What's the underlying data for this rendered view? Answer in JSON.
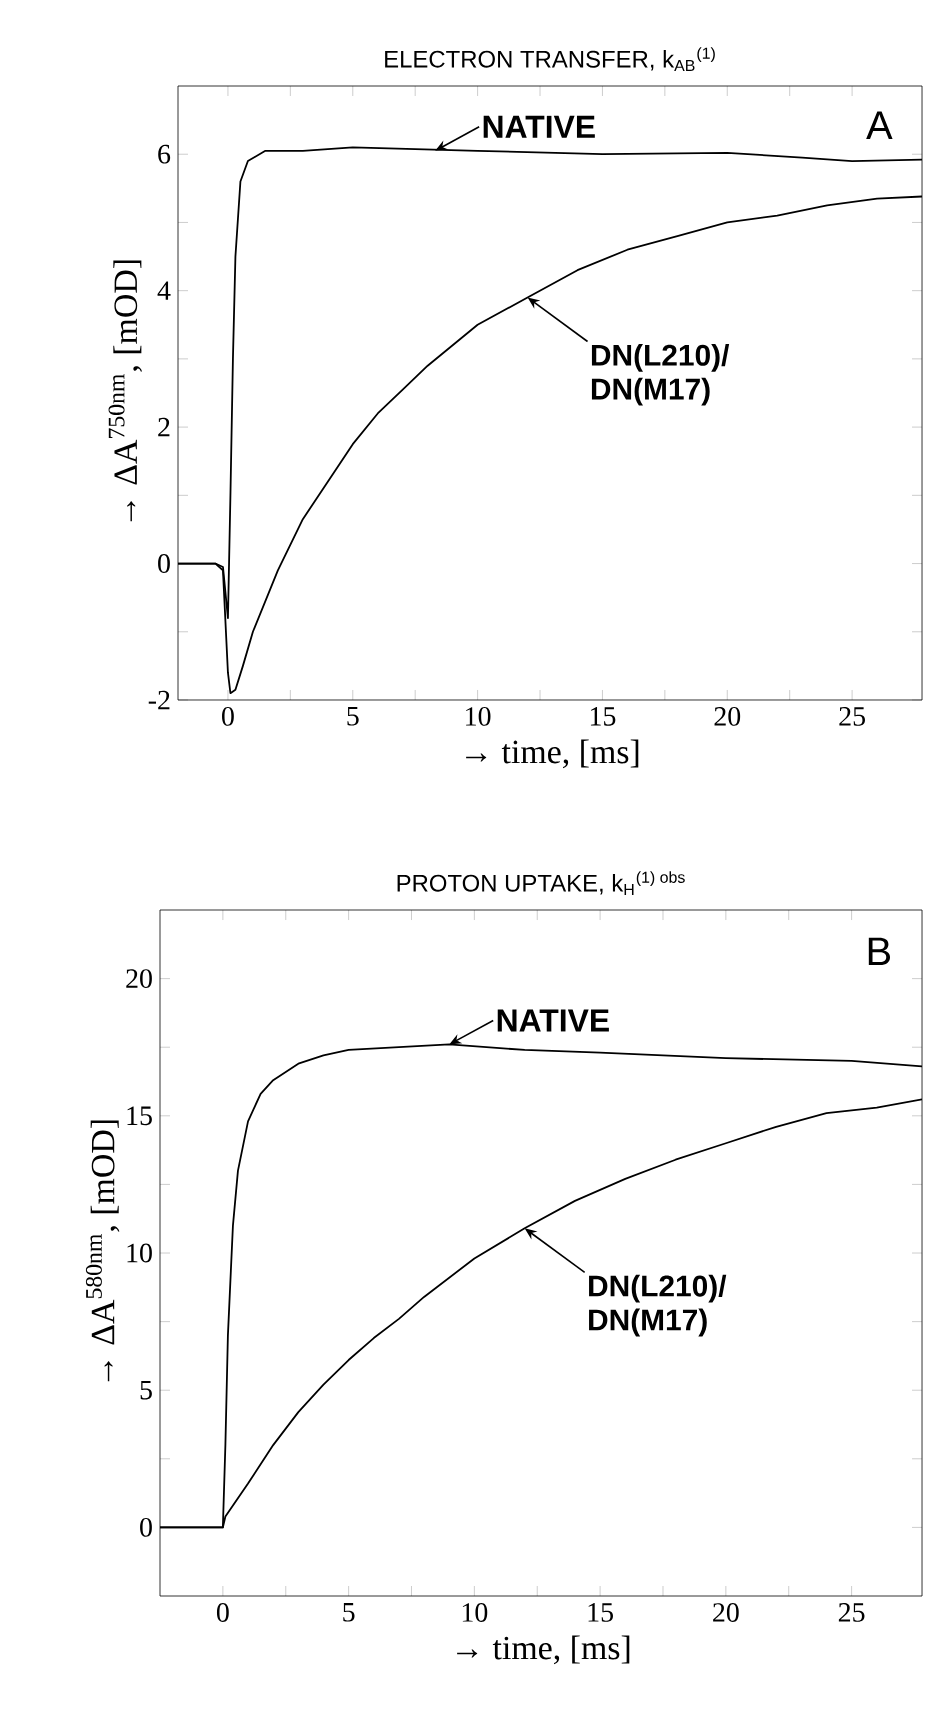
{
  "chart_data": [
    {
      "type": "line",
      "title": "ELECTRON TRANSFER, k$_{AB}$$^{(1)}$",
      "xlabel": "→ time, [ms]",
      "ylabel": "→ ΔA$^{750nm}$, [mOD]",
      "xlim": [
        -2,
        27.8
      ],
      "ylim": [
        -2,
        7
      ],
      "xticks": [
        0,
        {
          "value": 2.5,
          "label": null
        },
        5,
        {
          "value": 7.5,
          "label": null
        },
        10,
        {
          "value": 12.5,
          "label": null
        },
        15,
        {
          "value": 17.5,
          "label": null
        },
        20,
        {
          "value": 22.5,
          "label": null
        },
        25
      ],
      "yticks": [
        -2,
        {
          "value": -1,
          "label": null
        },
        0,
        {
          "value": 1,
          "label": null
        },
        2,
        {
          "value": 3,
          "label": null
        },
        4,
        {
          "value": 5,
          "label": null
        },
        6
      ],
      "series": [
        {
          "color": "#000000",
          "x": [
            -2,
            -0.5,
            -0.2,
            0,
            0.1,
            0.2,
            0.3,
            0.5,
            0.8,
            1.5,
            3,
            5,
            10,
            15,
            20,
            23,
            25,
            27.8
          ],
          "values": [
            0,
            0,
            -0.05,
            -0.8,
            1,
            3,
            4.5,
            5.6,
            5.9,
            6.05,
            6.05,
            6.1,
            6.05,
            6.0,
            6.02,
            5.95,
            5.9,
            5.92
          ]
        },
        {
          "color": "#000000",
          "x": [
            -2,
            -0.5,
            -0.2,
            0,
            0.1,
            0.3,
            0.6,
            1,
            2,
            3,
            4,
            5,
            6,
            7,
            8,
            10,
            12,
            14,
            16,
            18,
            20,
            22,
            24,
            26,
            27.8
          ],
          "values": [
            0,
            0,
            -0.1,
            -1.6,
            -1.9,
            -1.85,
            -1.5,
            -1.0,
            -0.1,
            0.65,
            1.2,
            1.75,
            2.2,
            2.55,
            2.9,
            3.5,
            3.9,
            4.3,
            4.6,
            4.8,
            5.0,
            5.1,
            5.25,
            5.35,
            5.38
          ]
        }
      ],
      "annotations": [
        {
          "text": "NATIVE",
          "x": 8.3,
          "y": 6.05
        },
        {
          "text": "DN(L210)/ DN(M17)",
          "x": 12,
          "y": 3.9
        },
        "A"
      ]
    },
    {
      "type": "line",
      "title": "PROTON  UPTAKE, k$_{H}$$^{(1) obs}$",
      "xlabel": "→ time, [ms]",
      "ylabel": "→ ΔA$^{580nm}$, [mOD]",
      "xlim": [
        -2.5,
        27.8
      ],
      "ylim": [
        -2.5,
        22.5
      ],
      "xticks": [
        0,
        {
          "value": 2.5,
          "label": null
        },
        5,
        {
          "value": 7.5,
          "label": null
        },
        10,
        {
          "value": 12.5,
          "label": null
        },
        15,
        {
          "value": 17.5,
          "label": null
        },
        20,
        {
          "value": 22.5,
          "label": null
        },
        25
      ],
      "yticks": [
        0,
        {
          "value": 2.5,
          "label": null
        },
        5,
        {
          "value": 7.5,
          "label": null
        },
        10,
        {
          "value": 12.5,
          "label": null
        },
        15,
        {
          "value": 17.5,
          "label": null
        },
        20
      ],
      "series": [
        {
          "color": "#000000",
          "x": [
            -2.5,
            0,
            0.1,
            0.2,
            0.4,
            0.6,
            1,
            1.5,
            2,
            3,
            4,
            5,
            7,
            9,
            12,
            15,
            20,
            25,
            27.8
          ],
          "values": [
            0,
            0,
            3,
            7,
            11,
            13,
            14.8,
            15.8,
            16.3,
            16.9,
            17.2,
            17.4,
            17.5,
            17.6,
            17.4,
            17.3,
            17.1,
            17.0,
            16.8
          ]
        },
        {
          "color": "#000000",
          "x": [
            -2.5,
            0,
            0.1,
            1,
            2,
            3,
            4,
            5,
            6,
            7,
            8,
            10,
            12,
            14,
            16,
            18,
            20,
            22,
            24,
            26,
            27.8
          ],
          "values": [
            0,
            0,
            0.4,
            1.6,
            3.0,
            4.2,
            5.2,
            6.1,
            6.9,
            7.6,
            8.4,
            9.8,
            10.9,
            11.9,
            12.7,
            13.4,
            14.0,
            14.6,
            15.1,
            15.3,
            15.6
          ]
        }
      ],
      "annotations": [
        {
          "text": "NATIVE",
          "x": 9,
          "y": 17.6
        },
        {
          "text": "DN(L210)/ DN(M17)",
          "x": 12,
          "y": 10.9
        },
        "B"
      ]
    }
  ]
}
